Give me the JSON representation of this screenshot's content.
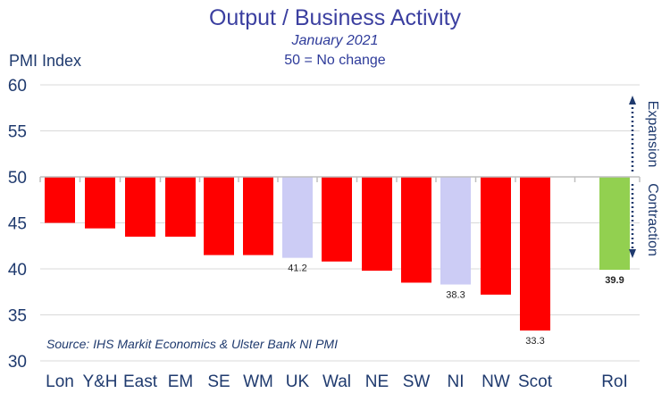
{
  "title": "Output / Business Activity",
  "subtitle": "January 2021",
  "note": "50 = No change",
  "source": "Source: IHS Markit Economics & Ulster Bank NI PMI",
  "colors": {
    "region": "#ff0000",
    "uk": "#ccccf5",
    "roi": "#92d050",
    "roi_label": "#00b050",
    "text": "#1f3a6e",
    "grid": "#d9d9d9",
    "arrow": "#1f3a6e"
  },
  "chart_data": {
    "type": "bar",
    "title": "Output / Business Activity",
    "ylabel": "PMI Index",
    "baseline": 50,
    "ylim": [
      30,
      60
    ],
    "yticks": [
      30,
      35,
      40,
      45,
      50,
      55,
      60
    ],
    "grid": true,
    "categories": [
      "Lon",
      "Y&H",
      "East",
      "EM",
      "SE",
      "WM",
      "UK",
      "Wal",
      "NE",
      "SW",
      "NI",
      "NW",
      "Scot",
      "RoI"
    ],
    "values": [
      45.0,
      44.4,
      43.5,
      43.5,
      41.5,
      41.5,
      41.2,
      40.8,
      39.8,
      38.5,
      38.3,
      37.2,
      33.3,
      39.9
    ],
    "value_labels": [
      "",
      "",
      "",
      "",
      "",
      "",
      "41.2",
      "",
      "",
      "",
      "38.3",
      "",
      "33.3",
      "39.9"
    ],
    "annotations": [
      "Expansion",
      "Contraction"
    ]
  }
}
